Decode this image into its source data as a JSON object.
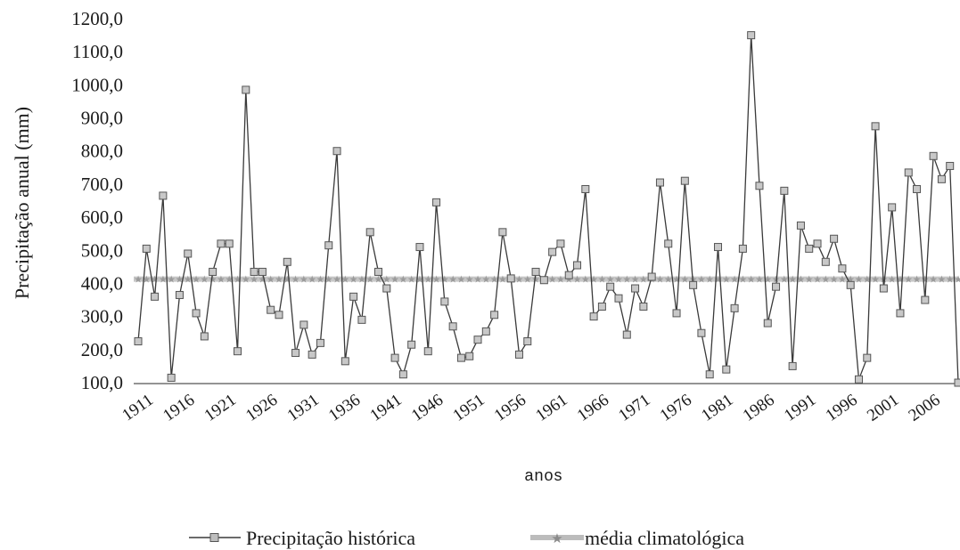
{
  "chart_data": {
    "type": "line",
    "ylabel": "Precipitação anual (mm)",
    "xlabel": "anos",
    "ylim": [
      100,
      1200
    ],
    "yticks": [
      "100,0",
      "200,0",
      "300,0",
      "400,0",
      "500,0",
      "600,0",
      "700,0",
      "800,0",
      "900,0",
      "1000,0",
      "1100,0",
      "1200,0"
    ],
    "xtick_labels": [
      "1911",
      "1916",
      "1921",
      "1926",
      "1931",
      "1936",
      "1941",
      "1946",
      "1951",
      "1956",
      "1961",
      "1966",
      "1971",
      "1976",
      "1981",
      "1986",
      "1991",
      "1996",
      "2001",
      "2006"
    ],
    "x": [
      1911,
      1912,
      1913,
      1914,
      1915,
      1916,
      1917,
      1918,
      1919,
      1920,
      1921,
      1922,
      1923,
      1924,
      1925,
      1926,
      1927,
      1928,
      1929,
      1930,
      1931,
      1932,
      1933,
      1934,
      1935,
      1936,
      1937,
      1938,
      1939,
      1940,
      1941,
      1942,
      1943,
      1944,
      1945,
      1946,
      1947,
      1948,
      1949,
      1950,
      1951,
      1952,
      1953,
      1954,
      1955,
      1956,
      1957,
      1958,
      1959,
      1960,
      1961,
      1962,
      1963,
      1964,
      1965,
      1966,
      1967,
      1968,
      1969,
      1970,
      1971,
      1972,
      1973,
      1974,
      1975,
      1976,
      1977,
      1978,
      1979,
      1980,
      1981,
      1982,
      1983,
      1984,
      1985,
      1986,
      1987,
      1988,
      1989,
      1990,
      1991,
      1992,
      1993,
      1994,
      1995,
      1996,
      1997,
      1998,
      1999,
      2000,
      2001,
      2002,
      2003,
      2004,
      2005,
      2006,
      2007,
      2008,
      2009,
      2010
    ],
    "grid": false,
    "legend_position": "bottom",
    "series": [
      {
        "name": "Precipitação histórica",
        "color": "#3a3a3a",
        "marker": "square",
        "values": [
          225,
          505,
          360,
          665,
          115,
          365,
          490,
          310,
          240,
          435,
          520,
          520,
          195,
          985,
          435,
          435,
          320,
          305,
          465,
          190,
          275,
          185,
          220,
          515,
          800,
          165,
          360,
          290,
          555,
          435,
          385,
          175,
          125,
          215,
          510,
          195,
          645,
          345,
          270,
          175,
          180,
          230,
          255,
          305,
          555,
          415,
          185,
          225,
          435,
          410,
          495,
          520,
          425,
          455,
          685,
          300,
          330,
          390,
          355,
          245,
          385,
          330,
          420,
          705,
          520,
          310,
          710,
          395,
          250,
          125,
          510,
          140,
          325,
          505,
          1150,
          695,
          280,
          390,
          680,
          150,
          575,
          505,
          520,
          465,
          535,
          445,
          395,
          110,
          175,
          875,
          385,
          630,
          310,
          735,
          685,
          350,
          785,
          715,
          755,
          100
        ]
      },
      {
        "name": "média climatológica",
        "color": "#b4b4b4",
        "marker": "star",
        "value": 413
      }
    ]
  }
}
